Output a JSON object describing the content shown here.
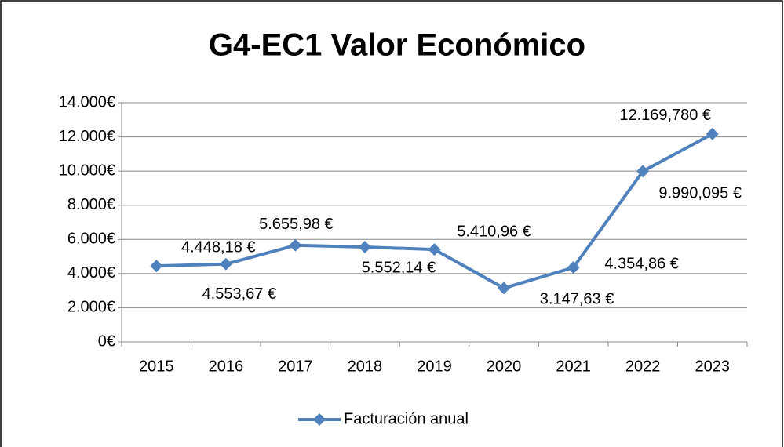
{
  "chart_data": {
    "type": "line",
    "title": "G4-EC1 Valor Económico",
    "categories": [
      "2015",
      "2016",
      "2017",
      "2018",
      "2019",
      "2020",
      "2021",
      "2022",
      "2023"
    ],
    "series": [
      {
        "name": "Facturación anual",
        "color": "#4f81bd",
        "values": [
          4448.18,
          4553.67,
          5655.98,
          5552.14,
          5410.96,
          3147.63,
          4354.86,
          9990.095,
          12169.78
        ],
        "value_labels": [
          "4.448,18 €",
          "4.553,67 €",
          "5.655,98 €",
          "5.552,14 €",
          "5.410,96 €",
          "3.147,63 €",
          "4.354,86 €",
          "9.990,095 €",
          "12.169,780 €"
        ]
      }
    ],
    "ylim": [
      0,
      14000
    ],
    "yticks": [
      {
        "value": 0,
        "label": "0€"
      },
      {
        "value": 2000,
        "label": "2.000€"
      },
      {
        "value": 4000,
        "label": "4.000€"
      },
      {
        "value": 6000,
        "label": "6.000€"
      },
      {
        "value": 8000,
        "label": "8.000€"
      },
      {
        "value": 10000,
        "label": "10.000€"
      },
      {
        "value": 12000,
        "label": "12.000€"
      },
      {
        "value": 14000,
        "label": "14.000€"
      }
    ],
    "grid": true,
    "legend": "bottom"
  }
}
